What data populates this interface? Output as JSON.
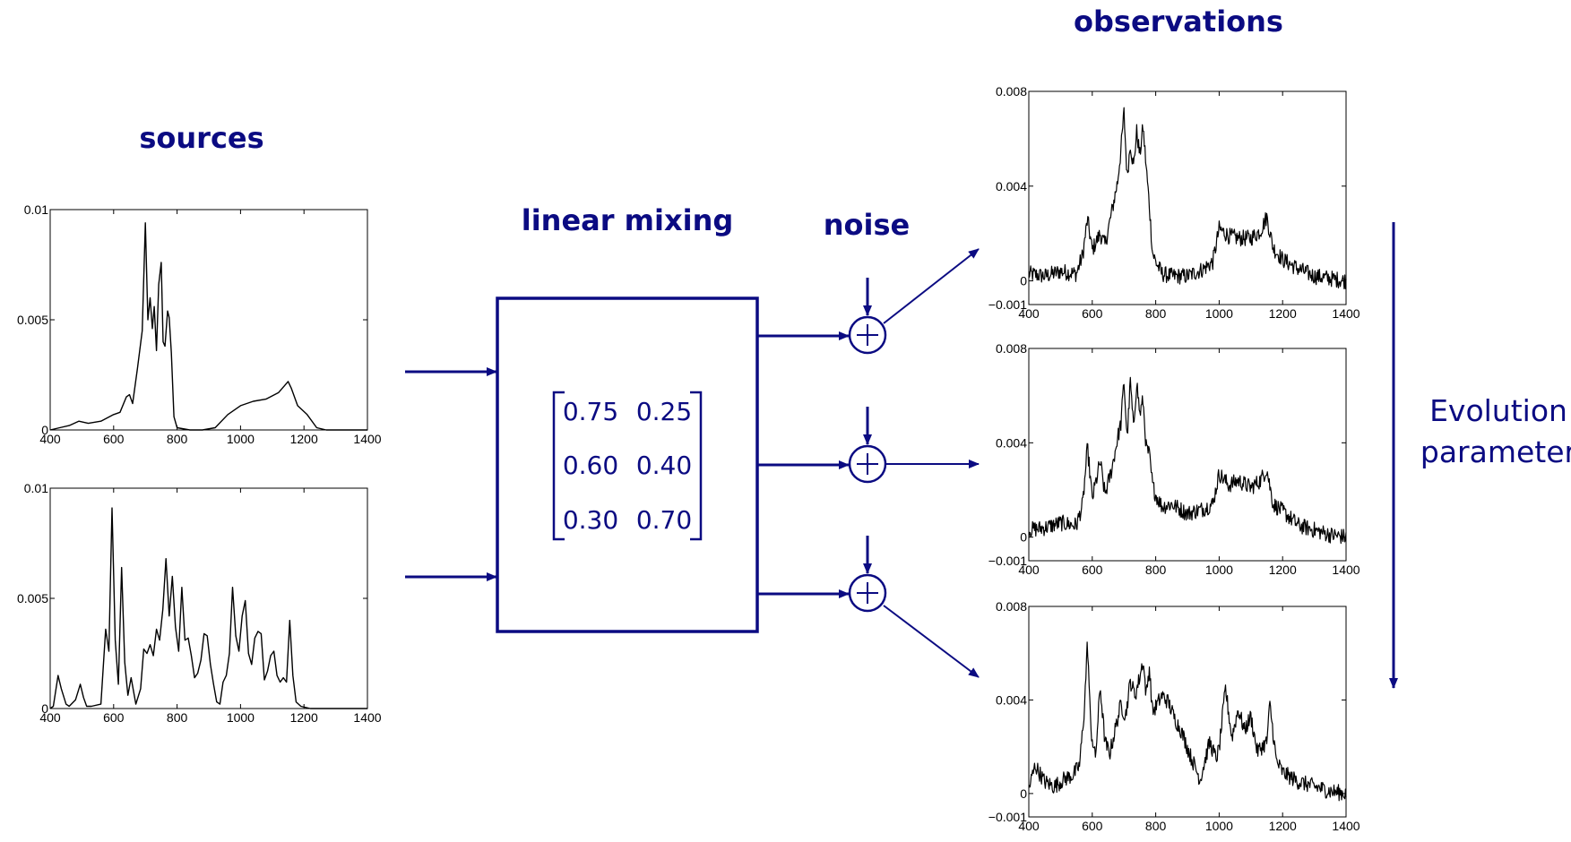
{
  "labels": {
    "sources": "sources",
    "linear_mixing": "linear mixing",
    "noise": "noise",
    "observations": "observations",
    "evolution_line1": "Evolution",
    "evolution_line2": "parameter"
  },
  "mixing_matrix": [
    [
      "0.75",
      "0.25"
    ],
    [
      "0.60",
      "0.40"
    ],
    [
      "0.30",
      "0.70"
    ]
  ],
  "colors": {
    "diagram": "#0b0b82",
    "plot": "#000000"
  },
  "chart_data": [
    {
      "id": "source-1",
      "type": "line",
      "xlim": [
        400,
        1400
      ],
      "ylim": [
        0,
        0.01
      ],
      "xticks": [
        "400",
        "600",
        "800",
        "1000",
        "1200",
        "1400"
      ],
      "yticks": [
        "0",
        "0.005",
        "0.01"
      ],
      "x": [
        400,
        430,
        460,
        490,
        520,
        560,
        600,
        620,
        640,
        650,
        660,
        675,
        690,
        700,
        708,
        715,
        722,
        728,
        735,
        742,
        750,
        756,
        762,
        770,
        775,
        782,
        790,
        800,
        840,
        880,
        920,
        960,
        1000,
        1040,
        1080,
        1120,
        1150,
        1160,
        1180,
        1210,
        1240,
        1270,
        1300,
        1400
      ],
      "y": [
        0,
        0.0001,
        0.0002,
        0.0004,
        0.0003,
        0.0004,
        0.0007,
        0.0008,
        0.0015,
        0.0016,
        0.0012,
        0.0028,
        0.0045,
        0.0094,
        0.005,
        0.006,
        0.0046,
        0.0056,
        0.0036,
        0.0066,
        0.0076,
        0.004,
        0.0038,
        0.0054,
        0.0051,
        0.0035,
        0.0006,
        0.0001,
        0,
        0,
        0.0001,
        0.0007,
        0.0011,
        0.0013,
        0.0014,
        0.0017,
        0.0022,
        0.0019,
        0.0011,
        0.0007,
        0.0001,
        0,
        0,
        0
      ]
    },
    {
      "id": "source-2",
      "type": "line",
      "xlim": [
        400,
        1400
      ],
      "ylim": [
        0,
        0.01
      ],
      "xticks": [
        "400",
        "600",
        "800",
        "1000",
        "1200",
        "1400"
      ],
      "yticks": [
        "0",
        "0.005",
        "0.01"
      ],
      "x": [
        400,
        410,
        425,
        435,
        450,
        460,
        480,
        495,
        505,
        515,
        530,
        560,
        575,
        585,
        595,
        605,
        615,
        625,
        635,
        645,
        655,
        670,
        685,
        695,
        705,
        715,
        725,
        735,
        745,
        755,
        765,
        775,
        785,
        795,
        805,
        815,
        825,
        835,
        845,
        855,
        865,
        875,
        885,
        895,
        905,
        915,
        925,
        935,
        945,
        955,
        965,
        975,
        985,
        995,
        1005,
        1015,
        1025,
        1035,
        1045,
        1055,
        1065,
        1075,
        1085,
        1095,
        1105,
        1115,
        1125,
        1135,
        1145,
        1155,
        1165,
        1175,
        1190,
        1220,
        1400
      ],
      "y": [
        0,
        0.0001,
        0.0015,
        0.0009,
        0.0002,
        0.0001,
        0.0004,
        0.0011,
        0.0005,
        0.0001,
        0.0001,
        0.0002,
        0.0036,
        0.0026,
        0.0091,
        0.0031,
        0.0011,
        0.0064,
        0.0021,
        0.0006,
        0.0014,
        0.0002,
        0.0009,
        0.0027,
        0.0025,
        0.0029,
        0.0024,
        0.0036,
        0.0031,
        0.0045,
        0.0068,
        0.0042,
        0.006,
        0.0037,
        0.0026,
        0.0055,
        0.0031,
        0.0032,
        0.0024,
        0.0014,
        0.0016,
        0.0022,
        0.0034,
        0.0033,
        0.002,
        0.0011,
        0.0003,
        0.0002,
        0.0012,
        0.0015,
        0.0025,
        0.0055,
        0.0033,
        0.0026,
        0.0042,
        0.0049,
        0.0025,
        0.002,
        0.0032,
        0.0035,
        0.0034,
        0.0013,
        0.0017,
        0.0024,
        0.0026,
        0.0015,
        0.0012,
        0.0014,
        0.0012,
        0.004,
        0.0015,
        0.0003,
        0.0001,
        0,
        0
      ]
    },
    {
      "id": "observation-1",
      "type": "line",
      "xlim": [
        400,
        1400
      ],
      "ylim": [
        -0.001,
        0.008
      ],
      "xticks": [
        "400",
        "600",
        "800",
        "1000",
        "1200",
        "1400"
      ],
      "yticks": [
        "−0.001",
        "0",
        "0.004",
        "0.008"
      ],
      "x": [
        400,
        450,
        500,
        550,
        570,
        585,
        600,
        625,
        640,
        660,
        680,
        690,
        700,
        710,
        720,
        730,
        740,
        750,
        760,
        770,
        780,
        790,
        800,
        820,
        850,
        900,
        950,
        980,
        1000,
        1030,
        1060,
        1100,
        1130,
        1150,
        1170,
        1200,
        1250,
        1300,
        1350,
        1400
      ],
      "y": [
        0.0003,
        0.0002,
        0.0004,
        0.0003,
        0.0011,
        0.0026,
        0.0013,
        0.002,
        0.0015,
        0.0028,
        0.0042,
        0.0055,
        0.0071,
        0.0044,
        0.0058,
        0.0048,
        0.0063,
        0.0053,
        0.0065,
        0.0048,
        0.0032,
        0.0012,
        0.0008,
        0.0003,
        0.0002,
        0.0002,
        0.0005,
        0.0008,
        0.0022,
        0.0019,
        0.0018,
        0.0018,
        0.0021,
        0.0027,
        0.0014,
        0.0009,
        0.0005,
        0.0002,
        0.0001,
        0
      ]
    },
    {
      "id": "observation-2",
      "type": "line",
      "xlim": [
        400,
        1400
      ],
      "ylim": [
        -0.001,
        0.008
      ],
      "xticks": [
        "400",
        "600",
        "800",
        "1000",
        "1200",
        "1400"
      ],
      "yticks": [
        "−0.001",
        "0",
        "0.004",
        "0.008"
      ],
      "x": [
        400,
        450,
        500,
        550,
        570,
        585,
        600,
        625,
        640,
        660,
        680,
        690,
        700,
        710,
        720,
        730,
        740,
        750,
        760,
        770,
        780,
        790,
        800,
        820,
        850,
        900,
        950,
        980,
        1000,
        1030,
        1060,
        1100,
        1130,
        1150,
        1170,
        1200,
        1250,
        1300,
        1350,
        1400
      ],
      "y": [
        0.0003,
        0.0004,
        0.0006,
        0.0005,
        0.0014,
        0.0038,
        0.0016,
        0.0032,
        0.0018,
        0.0028,
        0.0042,
        0.0048,
        0.0066,
        0.0042,
        0.0066,
        0.0046,
        0.0066,
        0.0052,
        0.0058,
        0.0038,
        0.0035,
        0.0022,
        0.0018,
        0.0013,
        0.0014,
        0.001,
        0.0012,
        0.0014,
        0.0027,
        0.0022,
        0.0024,
        0.0021,
        0.0024,
        0.0029,
        0.0014,
        0.0011,
        0.0005,
        0.0003,
        0.0001,
        0
      ]
    },
    {
      "id": "observation-3",
      "type": "line",
      "xlim": [
        400,
        1400
      ],
      "ylim": [
        -0.001,
        0.008
      ],
      "xticks": [
        "400",
        "600",
        "800",
        "1000",
        "1200",
        "1400"
      ],
      "yticks": [
        "−0.001",
        "0",
        "0.004",
        "0.008"
      ],
      "x": [
        400,
        420,
        450,
        480,
        510,
        540,
        560,
        575,
        585,
        595,
        610,
        625,
        640,
        655,
        670,
        690,
        705,
        720,
        735,
        750,
        760,
        770,
        780,
        790,
        800,
        820,
        840,
        860,
        880,
        910,
        940,
        970,
        990,
        1000,
        1020,
        1040,
        1060,
        1080,
        1100,
        1120,
        1150,
        1160,
        1180,
        1200,
        1250,
        1300,
        1350,
        1400
      ],
      "y": [
        0.0002,
        0.0012,
        0.0005,
        0.0003,
        0.0006,
        0.0008,
        0.0012,
        0.0036,
        0.0065,
        0.0028,
        0.0015,
        0.0046,
        0.0022,
        0.0017,
        0.0026,
        0.0038,
        0.0033,
        0.0048,
        0.0042,
        0.005,
        0.0057,
        0.0042,
        0.0054,
        0.0035,
        0.0037,
        0.0042,
        0.0039,
        0.0032,
        0.0027,
        0.0016,
        0.0006,
        0.0022,
        0.0015,
        0.0019,
        0.0045,
        0.0024,
        0.0036,
        0.0027,
        0.0033,
        0.0018,
        0.0022,
        0.0038,
        0.0014,
        0.0009,
        0.0005,
        0.0003,
        0.0001,
        0
      ]
    }
  ]
}
